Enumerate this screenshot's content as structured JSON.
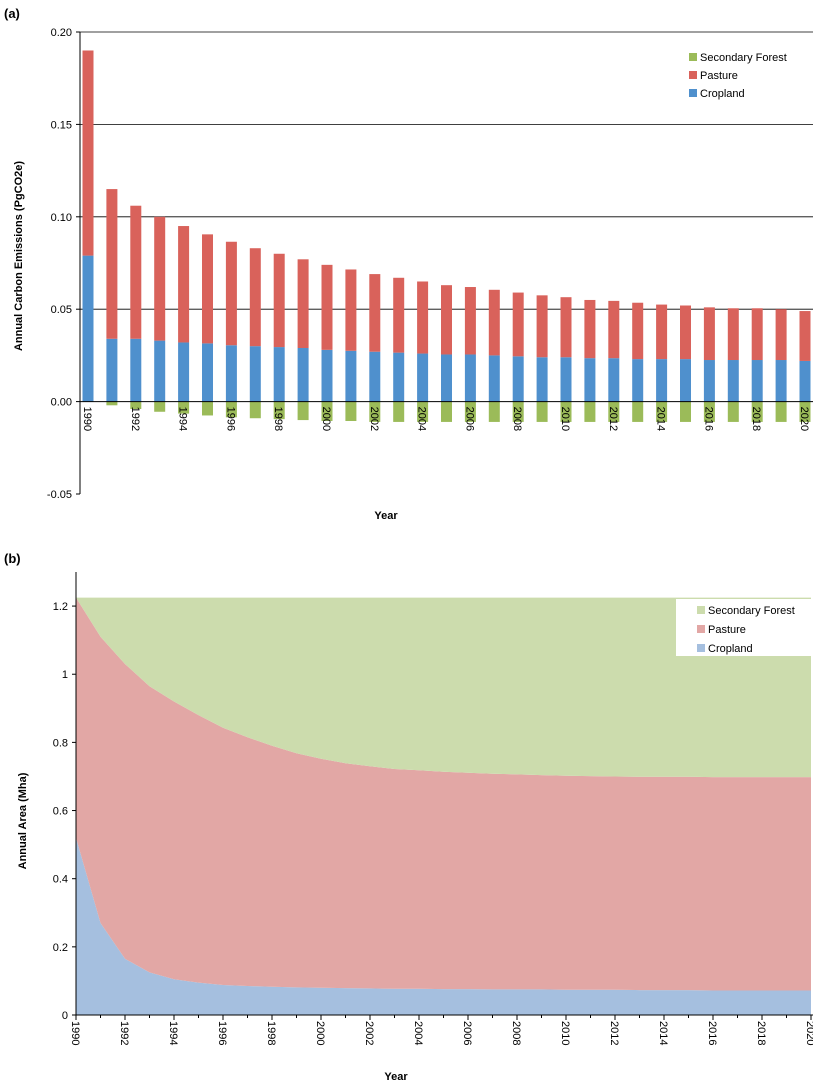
{
  "chart_data": [
    {
      "panel": "(a)",
      "type": "bar",
      "stacked": true,
      "xlabel": "Year",
      "ylabel": "Annual Carbon Emissions (PgCO2e)",
      "ylim": [
        -0.05,
        0.2
      ],
      "y_ticks": [
        "0.20",
        "0.15",
        "0.10",
        "0.05",
        "0.00",
        "-0.05"
      ],
      "x_tick_labels": [
        "1990",
        "1992",
        "1994",
        "1996",
        "1998",
        "2000",
        "2002",
        "2004",
        "2006",
        "2008",
        "2010",
        "2012",
        "2014",
        "2016",
        "2018",
        "2020"
      ],
      "grid": "horizontal",
      "legend_position": "top-right",
      "categories": [
        1990,
        1991,
        1992,
        1993,
        1994,
        1995,
        1996,
        1997,
        1998,
        1999,
        2000,
        2001,
        2002,
        2003,
        2004,
        2005,
        2006,
        2007,
        2008,
        2009,
        2010,
        2011,
        2012,
        2013,
        2014,
        2015,
        2016,
        2017,
        2018,
        2019,
        2020
      ],
      "series": [
        {
          "name": "Secondary Forest",
          "color": "#9bbb59",
          "values": [
            0,
            -0.002,
            -0.004,
            -0.0055,
            -0.0065,
            -0.0075,
            -0.0085,
            -0.009,
            -0.0095,
            -0.01,
            -0.0105,
            -0.0105,
            -0.011,
            -0.011,
            -0.011,
            -0.011,
            -0.011,
            -0.011,
            -0.011,
            -0.011,
            -0.011,
            -0.011,
            -0.011,
            -0.011,
            -0.011,
            -0.011,
            -0.011,
            -0.011,
            -0.011,
            -0.011,
            -0.011
          ]
        },
        {
          "name": "Pasture",
          "color": "#d9625b",
          "values": [
            0.111,
            0.081,
            0.072,
            0.067,
            0.063,
            0.059,
            0.056,
            0.053,
            0.0505,
            0.048,
            0.046,
            0.044,
            0.042,
            0.0405,
            0.039,
            0.0375,
            0.0365,
            0.0355,
            0.0345,
            0.0335,
            0.0325,
            0.0315,
            0.031,
            0.0305,
            0.0295,
            0.029,
            0.0285,
            0.028,
            0.028,
            0.0275,
            0.027
          ]
        },
        {
          "name": "Cropland",
          "color": "#4f90cd",
          "values": [
            0.079,
            0.034,
            0.034,
            0.033,
            0.032,
            0.0315,
            0.0305,
            0.03,
            0.0295,
            0.029,
            0.028,
            0.0275,
            0.027,
            0.0265,
            0.026,
            0.0255,
            0.0255,
            0.025,
            0.0245,
            0.024,
            0.024,
            0.0235,
            0.0235,
            0.023,
            0.023,
            0.023,
            0.0225,
            0.0225,
            0.0225,
            0.0225,
            0.022
          ]
        }
      ]
    },
    {
      "panel": "(b)",
      "type": "area",
      "stacked": true,
      "xlabel": "Year",
      "ylabel": "Annual Area (Mha)",
      "ylim": [
        0,
        1.3
      ],
      "y_ticks": [
        "1.2",
        "1",
        "0.8",
        "0.6",
        "0.4",
        "0.2",
        "0"
      ],
      "x_tick_labels": [
        "1990",
        "1992",
        "1994",
        "1996",
        "1998",
        "2000",
        "2002",
        "2004",
        "2006",
        "2008",
        "2010",
        "2012",
        "2014",
        "2016",
        "2018",
        "2020"
      ],
      "legend_position": "top-right",
      "categories": [
        1990,
        1991,
        1992,
        1993,
        1994,
        1995,
        1996,
        1997,
        1998,
        1999,
        2000,
        2001,
        2002,
        2003,
        2004,
        2005,
        2006,
        2007,
        2008,
        2009,
        2010,
        2011,
        2012,
        2013,
        2014,
        2015,
        2016,
        2017,
        2018,
        2019,
        2020
      ],
      "series": [
        {
          "name": "Cropland",
          "color": "#a5bfdf",
          "values": [
            0.52,
            0.27,
            0.165,
            0.125,
            0.105,
            0.095,
            0.088,
            0.085,
            0.083,
            0.081,
            0.08,
            0.079,
            0.078,
            0.077,
            0.077,
            0.076,
            0.076,
            0.075,
            0.075,
            0.075,
            0.074,
            0.074,
            0.074,
            0.073,
            0.073,
            0.073,
            0.072,
            0.072,
            0.072,
            0.072,
            0.072
          ]
        },
        {
          "name": "Pasture",
          "color": "#e2a7a5",
          "values": [
            0.705,
            0.84,
            0.865,
            0.84,
            0.815,
            0.785,
            0.755,
            0.73,
            0.707,
            0.687,
            0.672,
            0.66,
            0.652,
            0.645,
            0.641,
            0.638,
            0.635,
            0.633,
            0.631,
            0.629,
            0.628,
            0.627,
            0.626,
            0.626,
            0.626,
            0.626,
            0.626,
            0.626,
            0.626,
            0.626,
            0.626
          ]
        },
        {
          "name": "Secondary Forest",
          "color": "#ccdcad",
          "values": [
            0,
            0.115,
            0.195,
            0.26,
            0.305,
            0.345,
            0.382,
            0.41,
            0.435,
            0.457,
            0.473,
            0.486,
            0.495,
            0.503,
            0.507,
            0.511,
            0.514,
            0.517,
            0.519,
            0.521,
            0.523,
            0.524,
            0.525,
            0.526,
            0.526,
            0.526,
            0.527,
            0.527,
            0.527,
            0.527,
            0.527
          ]
        }
      ]
    }
  ]
}
